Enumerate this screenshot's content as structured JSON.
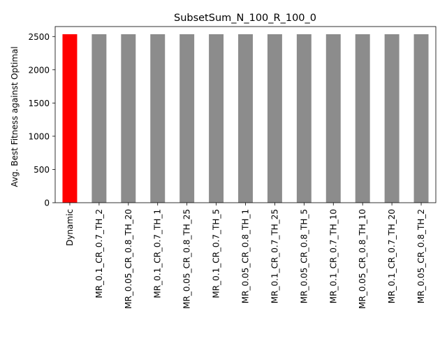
{
  "chart_data": {
    "type": "bar",
    "title": "SubsetSum_N_100_R_100_0",
    "xlabel": "",
    "ylabel": "Avg. Best Fitness against Optimal",
    "ylim": [
      0,
      2650
    ],
    "yticks": [
      0,
      500,
      1000,
      1500,
      2000,
      2500
    ],
    "grid": false,
    "legend": "none",
    "categories": [
      "Dynamic",
      "MR_0.1_CR_0.7_TH_2",
      "MR_0.05_CR_0.8_TH_20",
      "MR_0.1_CR_0.7_TH_1",
      "MR_0.05_CR_0.8_TH_25",
      "MR_0.1_CR_0.7_TH_5",
      "MR_0.05_CR_0.8_TH_1",
      "MR_0.1_CR_0.7_TH_25",
      "MR_0.05_CR_0.8_TH_5",
      "MR_0.1_CR_0.7_TH_10",
      "MR_0.05_CR_0.8_TH_10",
      "MR_0.1_CR_0.7_TH_20",
      "MR_0.05_CR_0.8_TH_2"
    ],
    "values": [
      2535,
      2535,
      2535,
      2535,
      2535,
      2535,
      2535,
      2535,
      2535,
      2535,
      2535,
      2535,
      2535
    ],
    "colors": {
      "highlight": "#ff0000",
      "default": "#8c8c8c"
    },
    "highlight_index": 0
  }
}
